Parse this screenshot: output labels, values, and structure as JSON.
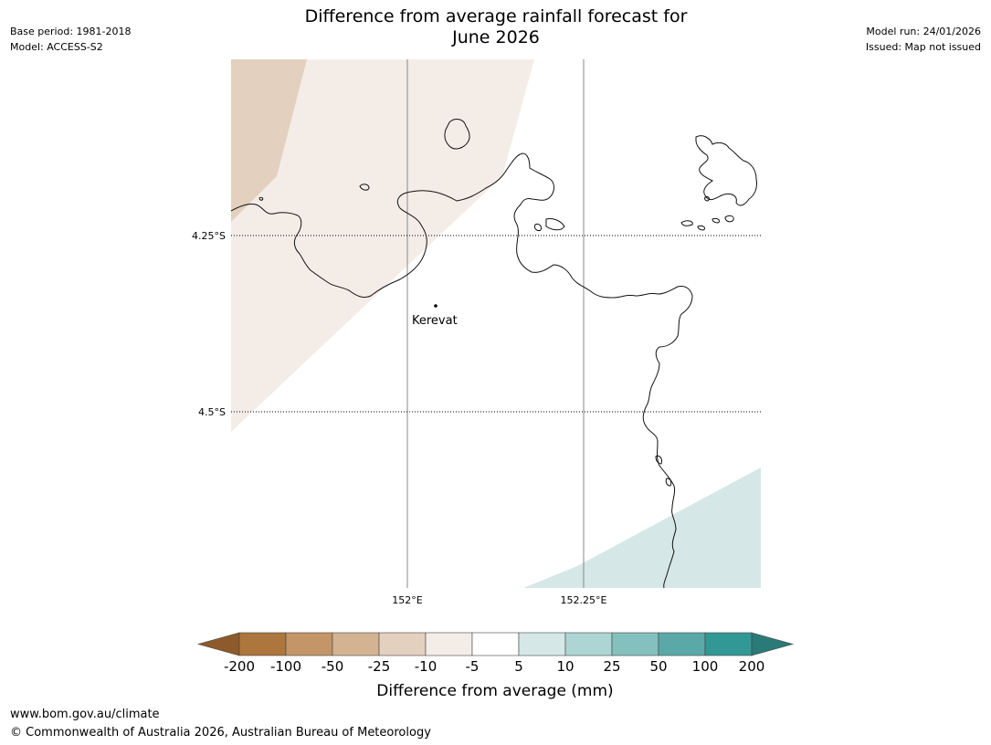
{
  "title": {
    "line1": "Difference from average rainfall forecast for",
    "line2": "June 2026"
  },
  "meta_left": {
    "base_period": "Base period: 1981-2018",
    "model": "Model: ACCESS-S2"
  },
  "meta_right": {
    "model_run": "Model run: 24/01/2026",
    "issued": "Issued: Map not issued"
  },
  "map": {
    "lat_labels": [
      "4.25°S",
      "4.5°S"
    ],
    "lon_labels": [
      "152°E",
      "152.25°E"
    ],
    "place": "Kerevat"
  },
  "legend": {
    "ticks": [
      "-200",
      "-100",
      "-50",
      "-25",
      "-10",
      "-5",
      "5",
      "10",
      "25",
      "50",
      "100",
      "200"
    ],
    "colors": {
      "below_min": "#8c5a2b",
      "bins": [
        "#ad763c",
        "#c39567",
        "#d4b393",
        "#e3d0be",
        "#f4ede7",
        "#ffffff",
        "#d5e8e7",
        "#acd5d4",
        "#84c0bd",
        "#5aa9a8",
        "#329895"
      ],
      "above_max": "#2a7a77"
    },
    "label": "Difference from average (mm)"
  },
  "footer": {
    "url": "www.bom.gov.au/climate",
    "copyright": "© Commonwealth of Australia 2026, Australian Bureau of Meteorology"
  }
}
